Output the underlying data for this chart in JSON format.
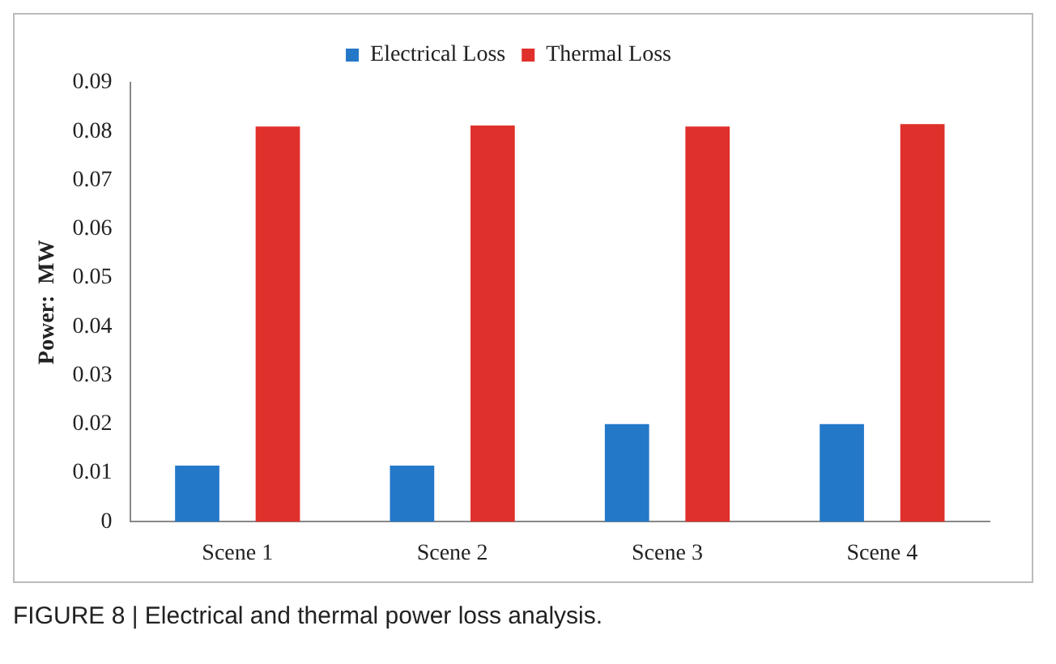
{
  "chart_data": {
    "type": "bar",
    "ylabel": "Power:  MW",
    "categories": [
      "Scene 1",
      "Scene 2",
      "Scene 3",
      "Scene 4"
    ],
    "series": [
      {
        "name": "Electrical Loss",
        "color": "#2478c8",
        "values": [
          0.0115,
          0.0115,
          0.02,
          0.02
        ]
      },
      {
        "name": "Thermal Loss",
        "color": "#e0302b",
        "values": [
          0.081,
          0.0812,
          0.081,
          0.0815
        ]
      }
    ],
    "ylim": [
      0,
      0.09
    ],
    "yticks": [
      0,
      0.01,
      0.02,
      0.03,
      0.04,
      0.05,
      0.06,
      0.07,
      0.08,
      0.09
    ],
    "grid": false,
    "legend": "top",
    "annotations": [
      "FIGURE 8 | Electrical and thermal power loss analysis."
    ]
  }
}
